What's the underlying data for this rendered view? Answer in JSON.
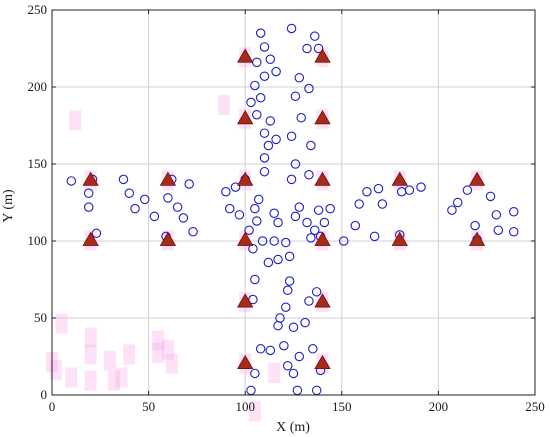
{
  "chart_data": {
    "type": "scatter",
    "title": "",
    "xlabel": "X (m)",
    "ylabel": "Y (m)",
    "xlim": [
      0,
      250
    ],
    "ylim": [
      0,
      250
    ],
    "xticks": [
      "0",
      "50",
      "100",
      "150",
      "200",
      "250"
    ],
    "yticks": [
      "0",
      "50",
      "100",
      "150",
      "200",
      "250"
    ],
    "grid": true,
    "colors": {
      "circle": "#1f1fc8",
      "triangle_fill": "#a82a1a",
      "triangle_stroke": "#6b1208",
      "highlight": "#f7a8e8",
      "grid": "#d0d0d0"
    },
    "series": [
      {
        "marker": "triangle",
        "points": [
          [
            20,
            140
          ],
          [
            60,
            140
          ],
          [
            100,
            140
          ],
          [
            140,
            140
          ],
          [
            180,
            140
          ],
          [
            220,
            140
          ],
          [
            20,
            101
          ],
          [
            60,
            101
          ],
          [
            100,
            101
          ],
          [
            140,
            101
          ],
          [
            180,
            101
          ],
          [
            220,
            101
          ],
          [
            100,
            220
          ],
          [
            140,
            220
          ],
          [
            100,
            180
          ],
          [
            140,
            180
          ],
          [
            100,
            61
          ],
          [
            140,
            61
          ],
          [
            100,
            21
          ],
          [
            140,
            21
          ]
        ]
      },
      {
        "marker": "circle",
        "points": [
          [
            10,
            139
          ],
          [
            19,
            131
          ],
          [
            19,
            122
          ],
          [
            21,
            140
          ],
          [
            23,
            105
          ],
          [
            37,
            140
          ],
          [
            40,
            131
          ],
          [
            43,
            121
          ],
          [
            48,
            127
          ],
          [
            53,
            116
          ],
          [
            59,
            103
          ],
          [
            60,
            128
          ],
          [
            62,
            140
          ],
          [
            65,
            122
          ],
          [
            68,
            115
          ],
          [
            71,
            137
          ],
          [
            73,
            106
          ],
          [
            90,
            132
          ],
          [
            92,
            121
          ],
          [
            95,
            135
          ],
          [
            97,
            117
          ],
          [
            100,
            140
          ],
          [
            108,
            235
          ],
          [
            110,
            226
          ],
          [
            106,
            216
          ],
          [
            113,
            218
          ],
          [
            110,
            207
          ],
          [
            105,
            201
          ],
          [
            116,
            210
          ],
          [
            108,
            193
          ],
          [
            103,
            190
          ],
          [
            106,
            182
          ],
          [
            113,
            178
          ],
          [
            110,
            170
          ],
          [
            116,
            166
          ],
          [
            112,
            162
          ],
          [
            110,
            154
          ],
          [
            124,
            238
          ],
          [
            132,
            225
          ],
          [
            136,
            233
          ],
          [
            138,
            225
          ],
          [
            128,
            206
          ],
          [
            133,
            199
          ],
          [
            126,
            194
          ],
          [
            129,
            180
          ],
          [
            124,
            168
          ],
          [
            134,
            162
          ],
          [
            126,
            150
          ],
          [
            133,
            143
          ],
          [
            124,
            140
          ],
          [
            110,
            145
          ],
          [
            107,
            127
          ],
          [
            105,
            121
          ],
          [
            106,
            113
          ],
          [
            102,
            107
          ],
          [
            109,
            100
          ],
          [
            104,
            95
          ],
          [
            115,
            118
          ],
          [
            117,
            112
          ],
          [
            115,
            100
          ],
          [
            121,
            99
          ],
          [
            123,
            90
          ],
          [
            117,
            88
          ],
          [
            112,
            86
          ],
          [
            128,
            122
          ],
          [
            126,
            116
          ],
          [
            132,
            112
          ],
          [
            136,
            107
          ],
          [
            134,
            102
          ],
          [
            138,
            120
          ],
          [
            141,
            112
          ],
          [
            139,
            103
          ],
          [
            144,
            121
          ],
          [
            105,
            75
          ],
          [
            104,
            62
          ],
          [
            123,
            74
          ],
          [
            122,
            68
          ],
          [
            121,
            57
          ],
          [
            118,
            50
          ],
          [
            117,
            45
          ],
          [
            125,
            44
          ],
          [
            131,
            47
          ],
          [
            133,
            61
          ],
          [
            137,
            67
          ],
          [
            108,
            30
          ],
          [
            113,
            29
          ],
          [
            105,
            14
          ],
          [
            103,
            3
          ],
          [
            120,
            32
          ],
          [
            128,
            25
          ],
          [
            122,
            19
          ],
          [
            125,
            14
          ],
          [
            127,
            3
          ],
          [
            135,
            30
          ],
          [
            139,
            16
          ],
          [
            137,
            3
          ],
          [
            151,
            100
          ],
          [
            157,
            110
          ],
          [
            159,
            124
          ],
          [
            163,
            132
          ],
          [
            167,
            103
          ],
          [
            169,
            134
          ],
          [
            171,
            124
          ],
          [
            180,
            104
          ],
          [
            181,
            132
          ],
          [
            185,
            133
          ],
          [
            191,
            135
          ],
          [
            207,
            120
          ],
          [
            210,
            125
          ],
          [
            215,
            133
          ],
          [
            219,
            110
          ],
          [
            220,
            101
          ],
          [
            227,
            129
          ],
          [
            230,
            117
          ],
          [
            231,
            107
          ],
          [
            239,
            106
          ],
          [
            239,
            119
          ]
        ]
      }
    ],
    "highlight_marks": [
      [
        20,
        140
      ],
      [
        60,
        140
      ],
      [
        100,
        140
      ],
      [
        140,
        140
      ],
      [
        180,
        140
      ],
      [
        220,
        140
      ],
      [
        20,
        101
      ],
      [
        60,
        101
      ],
      [
        100,
        101
      ],
      [
        140,
        101
      ],
      [
        180,
        101
      ],
      [
        220,
        101
      ],
      [
        100,
        220
      ],
      [
        140,
        220
      ],
      [
        100,
        180
      ],
      [
        140,
        180
      ],
      [
        100,
        61
      ],
      [
        140,
        61
      ],
      [
        100,
        21
      ],
      [
        140,
        21
      ],
      [
        89,
        189
      ],
      [
        12,
        179
      ],
      [
        5,
        47
      ],
      [
        20,
        38
      ],
      [
        20,
        27
      ],
      [
        30,
        23
      ],
      [
        40,
        27
      ],
      [
        55,
        36
      ],
      [
        55,
        28
      ],
      [
        0,
        22
      ],
      [
        2,
        17
      ],
      [
        10,
        12
      ],
      [
        20,
        10
      ],
      [
        32,
        10
      ],
      [
        36,
        12
      ],
      [
        60,
        30
      ],
      [
        62,
        21
      ],
      [
        115,
        15
      ],
      [
        105,
        -10
      ]
    ]
  }
}
